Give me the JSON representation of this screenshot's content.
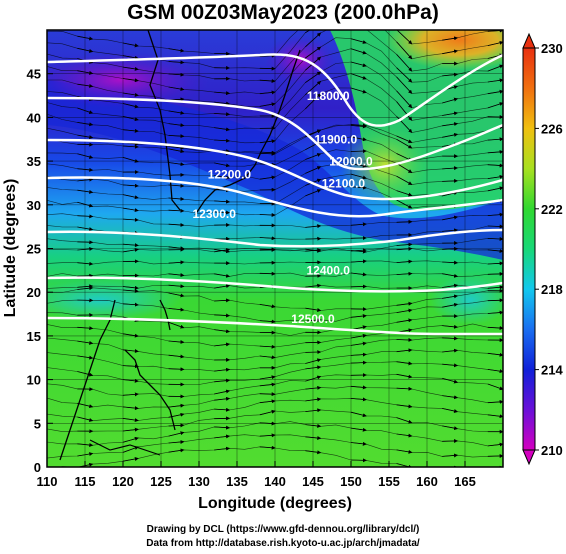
{
  "title": "GSM 00Z03May2023 (200.0hPa)",
  "xaxis": {
    "label": "Longitude (degrees)",
    "range": [
      110,
      170
    ],
    "ticks": [
      "110",
      "115",
      "120",
      "125",
      "130",
      "135",
      "140",
      "145",
      "150",
      "155",
      "160",
      "165"
    ]
  },
  "yaxis": {
    "label": "Latitude (degrees)",
    "range": [
      0,
      50
    ],
    "ticks": [
      "0",
      "5",
      "10",
      "15",
      "20",
      "25",
      "30",
      "35",
      "40",
      "45"
    ]
  },
  "colorbar": {
    "range": [
      210,
      230
    ],
    "ticks": [
      "210",
      "214",
      "218",
      "222",
      "226",
      "230"
    ],
    "colors": [
      "#d400c0",
      "#6a10d8",
      "#1020d8",
      "#1a6ef0",
      "#12c8ee",
      "#18d878",
      "#30d830",
      "#a8e020",
      "#f0c010",
      "#f07010",
      "#e83010"
    ]
  },
  "contours": [
    {
      "label": "11800.0",
      "lon": 147,
      "lat": 42
    },
    {
      "label": "11900.0",
      "lon": 148,
      "lat": 37
    },
    {
      "label": "12000.0",
      "lon": 150,
      "lat": 34.5
    },
    {
      "label": "12100.0",
      "lon": 149,
      "lat": 32
    },
    {
      "label": "12200.0",
      "lon": 134,
      "lat": 33
    },
    {
      "label": "12300.0",
      "lon": 132,
      "lat": 28.5
    },
    {
      "label": "12400.0",
      "lon": 147,
      "lat": 22
    },
    {
      "label": "12500.0",
      "lon": 145,
      "lat": 16.5
    }
  ],
  "credits": {
    "line1": "Drawing by DCL (https://www.gfd-dennou.org/library/dcl/)",
    "line2": "Data from http://database.rish.kyoto-u.ac.jp/arch/jmadata/"
  }
}
